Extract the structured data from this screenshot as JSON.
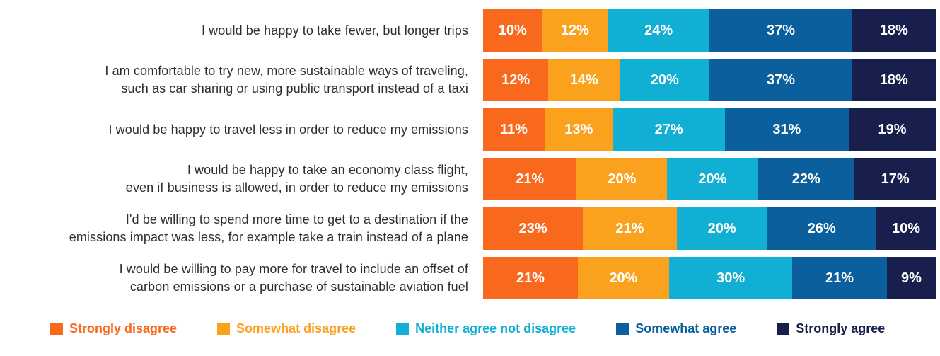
{
  "chart_data": {
    "type": "bar",
    "stacked": true,
    "orientation": "horizontal",
    "unit": "%",
    "grid": false,
    "legend_position": "bottom",
    "xlim": [
      0,
      100
    ],
    "categories": [
      "I would be happy to take fewer, but longer trips",
      "I am comfortable to try new, more sustainable ways of traveling, such as car sharing or using public transport instead of a taxi",
      "I would be happy to travel less in order to reduce my emissions",
      "I would be happy to take an economy class flight, even if business is allowed, in order to reduce my emissions",
      "I'd be willing to spend more time to get to a destination if the emissions impact was less, for example take a train instead of a plane",
      "I would be willing to pay more for travel to include an offset of carbon emissions or a purchase of sustainable aviation fuel"
    ],
    "category_lines": [
      [
        "I would be happy to take fewer, but longer trips"
      ],
      [
        "I am comfortable to try new, more sustainable ways of traveling,",
        "such as car sharing or using public transport instead of a taxi"
      ],
      [
        "I would be happy to travel less in order to reduce my emissions"
      ],
      [
        "I would be happy to take an economy class flight,",
        "even if business is allowed, in order to reduce my emissions"
      ],
      [
        "I'd be willing to spend more time to get to a destination if the",
        "emissions impact was less, for example take a train instead of a plane"
      ],
      [
        "I would be willing to pay more for travel to include an offset of",
        "carbon emissions or a purchase of sustainable aviation fuel"
      ]
    ],
    "series": [
      {
        "name": "Strongly disagree",
        "color": "#F8691D",
        "values": [
          10,
          12,
          11,
          21,
          23,
          21
        ]
      },
      {
        "name": "Somewhat disagree",
        "color": "#FAA21E",
        "values": [
          12,
          14,
          13,
          20,
          21,
          20
        ]
      },
      {
        "name": "Neither agree not disagree",
        "color": "#12AFD4",
        "values": [
          24,
          20,
          27,
          20,
          20,
          30
        ]
      },
      {
        "name": "Somewhat agree",
        "color": "#0A5F9C",
        "values": [
          37,
          37,
          31,
          22,
          26,
          21
        ]
      },
      {
        "name": "Strongly agree",
        "color": "#191F4D",
        "values": [
          18,
          18,
          19,
          17,
          10,
          9
        ]
      }
    ],
    "data_labels": [
      [
        "10%",
        "12%",
        "24%",
        "37%",
        "18%"
      ],
      [
        "12%",
        "14%",
        "20%",
        "37%",
        "18%"
      ],
      [
        "11%",
        "13%",
        "27%",
        "31%",
        "19%"
      ],
      [
        "21%",
        "20%",
        "20%",
        "22%",
        "17%"
      ],
      [
        "23%",
        "21%",
        "20%",
        "26%",
        "10%"
      ],
      [
        "21%",
        "20%",
        "30%",
        "21%",
        "9%"
      ]
    ],
    "text_color": "#2e2e2e",
    "value_label_color": "#ffffff"
  }
}
